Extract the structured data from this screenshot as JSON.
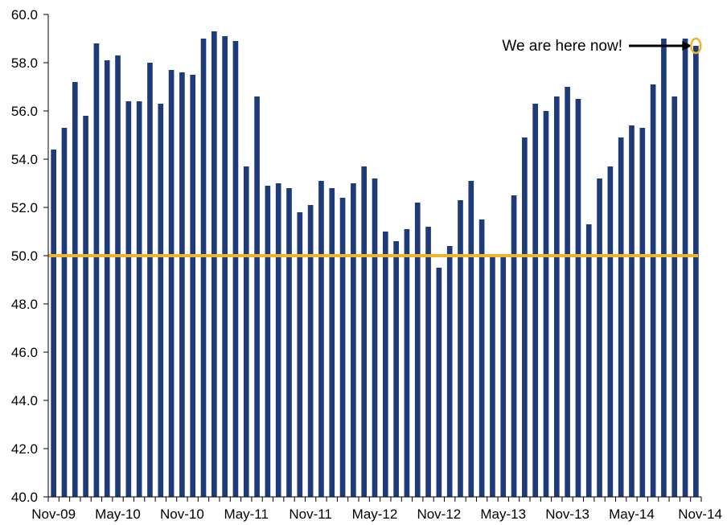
{
  "chart_data": {
    "type": "bar",
    "categories": [
      "Nov-09",
      "Dec-09",
      "Jan-10",
      "Feb-10",
      "Mar-10",
      "Apr-10",
      "May-10",
      "Jun-10",
      "Jul-10",
      "Aug-10",
      "Sep-10",
      "Oct-10",
      "Nov-10",
      "Dec-10",
      "Jan-11",
      "Feb-11",
      "Mar-11",
      "Apr-11",
      "May-11",
      "Jun-11",
      "Jul-11",
      "Aug-11",
      "Sep-11",
      "Oct-11",
      "Nov-11",
      "Dec-11",
      "Jan-12",
      "Feb-12",
      "Mar-12",
      "Apr-12",
      "May-12",
      "Jun-12",
      "Jul-12",
      "Aug-12",
      "Sep-12",
      "Oct-12",
      "Nov-12",
      "Dec-12",
      "Jan-13",
      "Feb-13",
      "Mar-13",
      "Apr-13",
      "May-13",
      "Jun-13",
      "Jul-13",
      "Aug-13",
      "Sep-13",
      "Oct-13",
      "Nov-13",
      "Dec-13",
      "Jan-14",
      "Feb-14",
      "Mar-14",
      "Apr-14",
      "May-14",
      "Jun-14",
      "Jul-14",
      "Aug-14",
      "Sep-14",
      "Oct-14",
      "Nov-14"
    ],
    "values": [
      54.4,
      55.3,
      57.2,
      55.8,
      58.8,
      58.1,
      58.3,
      56.4,
      56.4,
      58.0,
      56.3,
      57.7,
      57.6,
      57.5,
      59.0,
      59.3,
      59.1,
      58.9,
      53.7,
      56.6,
      52.9,
      53.0,
      52.8,
      51.8,
      52.1,
      53.1,
      52.8,
      52.4,
      53.0,
      53.7,
      53.2,
      51.0,
      50.6,
      51.1,
      52.2,
      51.2,
      49.5,
      50.4,
      52.3,
      53.1,
      51.5,
      50.0,
      50.0,
      52.5,
      54.9,
      56.3,
      56.0,
      56.6,
      57.0,
      56.5,
      51.3,
      53.2,
      53.7,
      54.9,
      55.4,
      55.3,
      57.1,
      59.0,
      56.6,
      59.0,
      58.7
    ],
    "x_tick_labels": [
      "Nov-09",
      "May-10",
      "Nov-10",
      "May-11",
      "Nov-11",
      "May-12",
      "Nov-12",
      "May-13",
      "Nov-13",
      "May-14",
      "Nov-14"
    ],
    "y_tick_labels": [
      "40.0",
      "42.0",
      "44.0",
      "46.0",
      "48.0",
      "50.0",
      "52.0",
      "54.0",
      "56.0",
      "58.0",
      "60.0"
    ],
    "ylim": [
      40,
      60
    ],
    "title": "",
    "xlabel": "",
    "ylabel": "",
    "reference_line": {
      "value": 50.0
    },
    "annotation": {
      "text": "We are here now!",
      "target_category": "Nov-14"
    },
    "colors": {
      "bars": "#1f3a78",
      "reference_line": "#f0b429",
      "highlight": "#f0b429",
      "axis": "#000000"
    },
    "grid": false,
    "legend": "none"
  }
}
